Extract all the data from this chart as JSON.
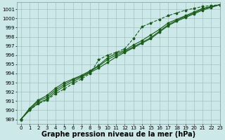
{
  "background_color": "#cce8e8",
  "plot_bg_color": "#cce8e8",
  "grid_color": "#9ab8b8",
  "line_color": "#1a5c1a",
  "xlabel": "Graphe pression niveau de la mer (hPa)",
  "xlabel_fontsize": 7,
  "xlim": [
    -0.5,
    23
  ],
  "ylim": [
    988.5,
    1001.8
  ],
  "yticks": [
    989,
    990,
    991,
    992,
    993,
    994,
    995,
    996,
    997,
    998,
    999,
    1000,
    1001
  ],
  "xticks": [
    0,
    1,
    2,
    3,
    4,
    5,
    6,
    7,
    8,
    9,
    10,
    11,
    12,
    13,
    14,
    15,
    16,
    17,
    18,
    19,
    20,
    21,
    22,
    23
  ],
  "series_main": [
    [
      989.0,
      990.0,
      990.8,
      991.2,
      992.0,
      992.6,
      993.1,
      993.6,
      994.1,
      994.6,
      995.2,
      995.8,
      996.3,
      996.8,
      997.3,
      997.8,
      998.5,
      999.2,
      999.7,
      1000.1,
      1000.5,
      1000.9,
      1001.2,
      1001.5
    ],
    [
      989.0,
      990.1,
      991.0,
      991.4,
      992.2,
      992.8,
      993.3,
      993.7,
      994.2,
      994.8,
      995.5,
      996.0,
      996.4,
      996.9,
      997.4,
      997.9,
      998.6,
      999.3,
      999.8,
      1000.2,
      1000.6,
      1001.0,
      1001.3,
      1001.5
    ],
    [
      989.0,
      990.2,
      991.1,
      991.6,
      992.4,
      993.0,
      993.4,
      993.8,
      994.3,
      994.9,
      995.7,
      996.2,
      996.5,
      997.1,
      997.6,
      998.2,
      998.8,
      999.5,
      999.9,
      1000.3,
      1000.7,
      1001.1,
      1001.3,
      1001.5
    ]
  ],
  "series_high": [
    989.0,
    990.0,
    990.7,
    991.1,
    991.8,
    992.3,
    992.9,
    993.4,
    994.0,
    995.5,
    996.0,
    996.3,
    996.7,
    997.8,
    999.1,
    999.5,
    999.9,
    1000.3,
    1000.6,
    1000.9,
    1001.1,
    1001.3,
    1001.4,
    1001.5
  ],
  "marker": "*",
  "marker_size": 2.5,
  "line_width": 0.8
}
